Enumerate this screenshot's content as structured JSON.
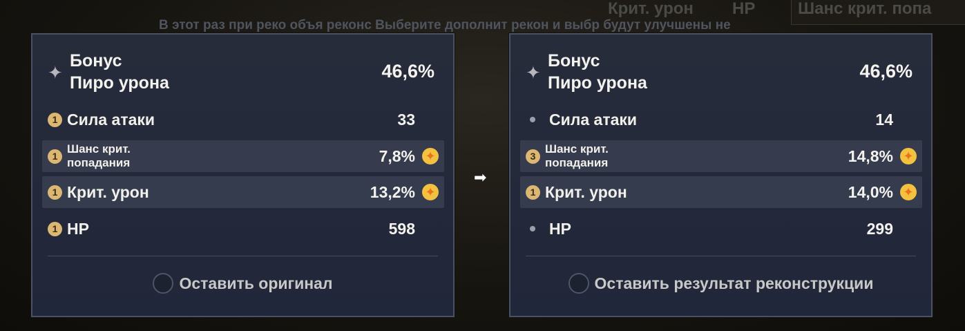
{
  "background": {
    "top_stat": "Шанс крит. попа",
    "stat2": "Крит. урон",
    "stat3": "HP",
    "description": "В этот раз при реко\nобъя       реконс\nВыберите дополнит\nрекон        и выбр\nбудут улучшены не"
  },
  "original": {
    "main_stat": {
      "name_line1": "Бонус",
      "name_line2": "Пиро урона",
      "value": "46,6%"
    },
    "substats": [
      {
        "badge": "1",
        "name": "Сила атаки",
        "value": "33",
        "upgraded": false
      },
      {
        "badge": "1",
        "name": "Шанс крит. попадания",
        "value": "7,8%",
        "upgraded": true
      },
      {
        "badge": "1",
        "name": "Крит. урон",
        "value": "13,2%",
        "upgraded": true
      },
      {
        "badge": "1",
        "name": "HP",
        "value": "598",
        "upgraded": false
      }
    ],
    "choice_label": "Оставить оригинал"
  },
  "arrow_icon": "arrow-right",
  "result": {
    "main_stat": {
      "name_line1": "Бонус",
      "name_line2": "Пиро урона",
      "value": "46,6%"
    },
    "substats": [
      {
        "badge": "",
        "name": "Сила атаки",
        "value": "14",
        "upgraded": false
      },
      {
        "badge": "3",
        "name": "Шанс крит. попадания",
        "value": "14,8%",
        "upgraded": true
      },
      {
        "badge": "1",
        "name": "Крит. урон",
        "value": "14,0%",
        "upgraded": true
      },
      {
        "badge": "",
        "name": "HP",
        "value": "299",
        "upgraded": false
      }
    ],
    "choice_label": "Оставить результат реконструкции"
  },
  "colors": {
    "badge": "#dcb773",
    "upgrade_icon": "#f4c040",
    "panel": "#252b3b"
  }
}
